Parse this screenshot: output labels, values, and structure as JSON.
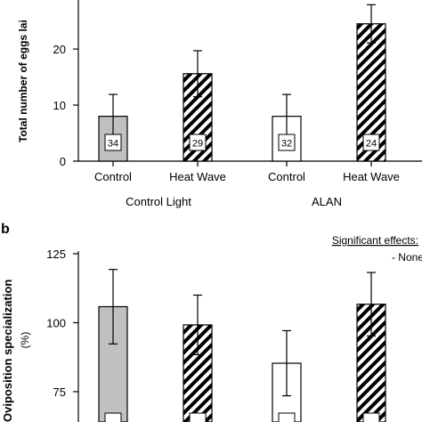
{
  "chart_data": [
    {
      "panel_letter": "",
      "type": "bar",
      "ylabel": "Total number of eggs lai",
      "ylim": [
        0,
        27
      ],
      "yticks": [
        0,
        10,
        20
      ],
      "grid": false,
      "categories": [
        "Control",
        "Heat Wave",
        "Control",
        "Heat Wave"
      ],
      "groups": [
        {
          "label": "Control Light",
          "bars": [
            0,
            1
          ]
        },
        {
          "label": "ALAN",
          "bars": [
            2,
            3
          ]
        }
      ],
      "values": [
        8.0,
        15.6,
        8.0,
        24.5
      ],
      "errors": [
        3.9,
        4.1,
        3.9,
        3.4
      ],
      "n": [
        "34",
        "29",
        "32",
        "24"
      ],
      "fills": [
        "gray",
        "hatched",
        "white",
        "hatched"
      ],
      "significant_effects_label": "",
      "significant_effects_value": ""
    },
    {
      "panel_letter": "b",
      "type": "bar",
      "ylabel_line1": "Oviposition specialization",
      "ylabel_line2": "(%)",
      "ylim": [
        64,
        125
      ],
      "yticks": [
        75,
        100,
        125
      ],
      "grid": false,
      "categories": [
        "",
        "",
        "",
        ""
      ],
      "values": [
        105.8,
        99.2,
        85.3,
        106.7
      ],
      "errors": [
        13.5,
        10.8,
        11.8,
        11.5
      ],
      "fills": [
        "gray",
        "hatched",
        "white",
        "hatched"
      ],
      "significant_effects_label": "Significant effects:",
      "significant_effects_value": "- None"
    }
  ],
  "colors": {
    "gray": "#c0c0c0",
    "white": "#ffffff",
    "stroke": "#000000"
  }
}
